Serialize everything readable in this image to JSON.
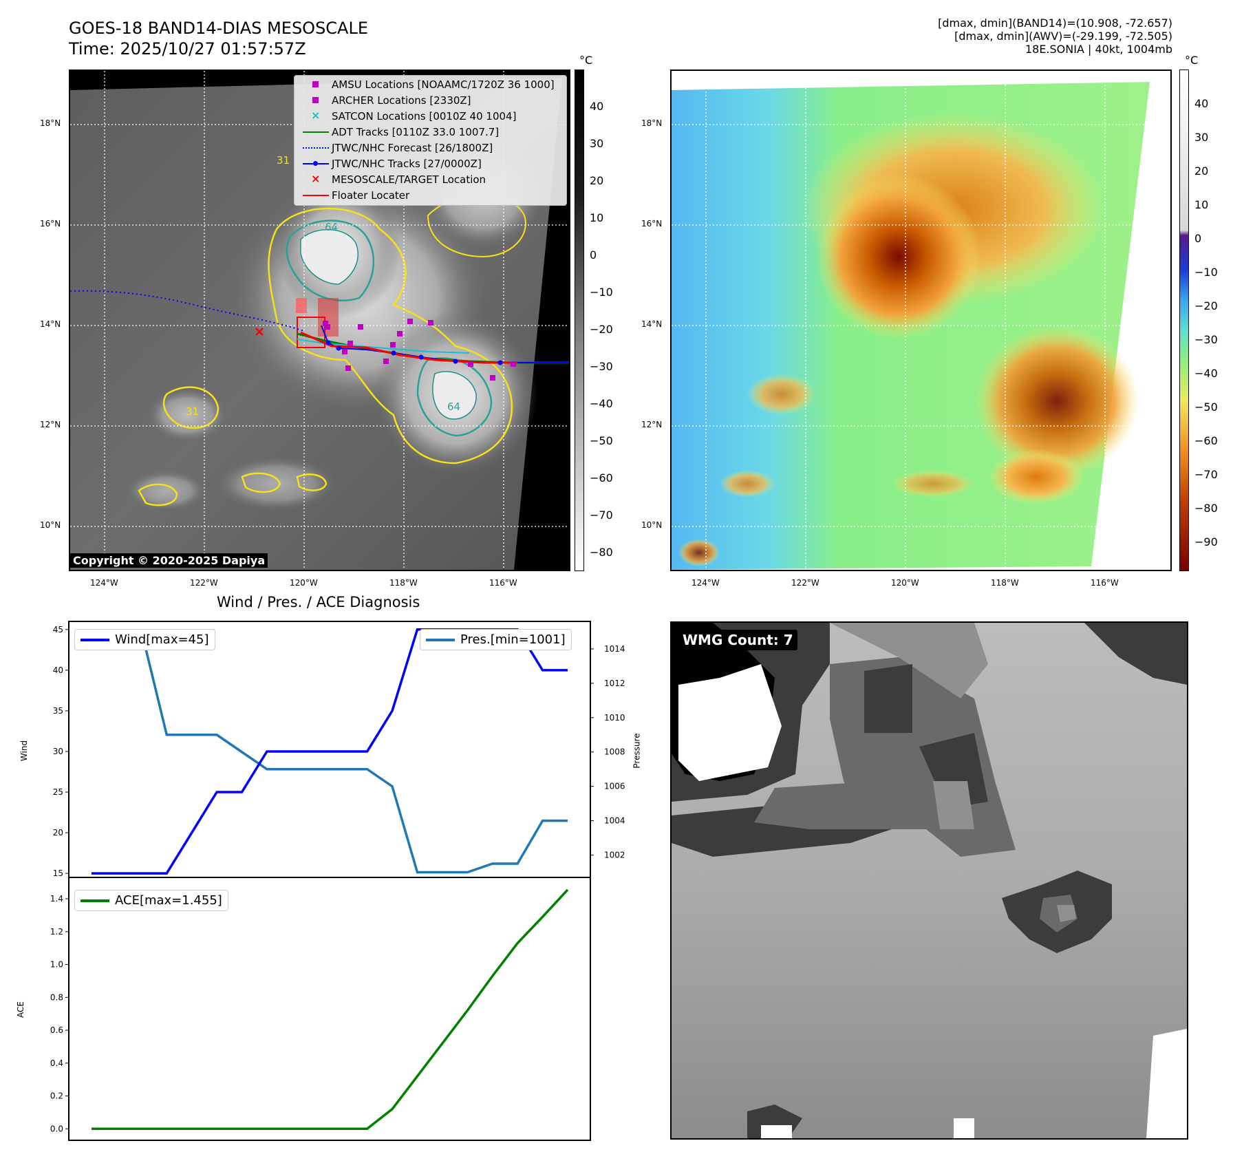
{
  "header": {
    "title_line1": "GOES-18 BAND14-DIAS MESOSCALE",
    "title_line2": "Time: 2025/10/27 01:57:57Z",
    "info_line1": "[dmax, dmin](BAND14)=(10.908, -72.657)",
    "info_line2": "[dmax, dmin](AWV)=(-29.199, -72.505)",
    "info_line3": "18E.SONIA | 40kt, 1004mb"
  },
  "map": {
    "lat_labels": [
      "18°N",
      "16°N",
      "14°N",
      "12°N",
      "10°N"
    ],
    "lon_labels": [
      "124°W",
      "122°W",
      "120°W",
      "118°W",
      "116°W"
    ],
    "copyright": "Copyright © 2020-2025 Dapiya",
    "contour_labels": [
      "31",
      "64",
      "31",
      "64"
    ]
  },
  "legend": {
    "items": [
      {
        "label": "AMSU Locations [NOAAMC/1720Z 36 1000]",
        "symbol": "square",
        "color": "#bf00bf"
      },
      {
        "label": "ARCHER Locations [2330Z]",
        "symbol": "square",
        "color": "#bf00bf"
      },
      {
        "label": "SATCON Locations [0010Z 40 1004]",
        "symbol": "x",
        "color": "#17becf"
      },
      {
        "label": "ADT Tracks [0110Z 33.0 1007.7]",
        "symbol": "line",
        "color": "#008000"
      },
      {
        "label": "JTWC/NHC Forecast [26/1800Z]",
        "symbol": "dotted",
        "color": "#0000ff"
      },
      {
        "label": "JTWC/NHC Tracks [27/0000Z]",
        "symbol": "line-dot",
        "color": "#0000ff"
      },
      {
        "label": "MESOSCALE/TARGET Location",
        "symbol": "x",
        "color": "#ff0000"
      },
      {
        "label": "Floater Locater",
        "symbol": "line",
        "color": "#ff0000"
      }
    ]
  },
  "cbar_gray": {
    "unit": "°C",
    "ticks": [
      "40",
      "30",
      "20",
      "10",
      "0",
      "−10",
      "−20",
      "−30",
      "−40",
      "−50",
      "−60",
      "−70",
      "−80"
    ]
  },
  "cbar_color": {
    "unit": "°C",
    "ticks": [
      "40",
      "30",
      "20",
      "10",
      "0",
      "−10",
      "−20",
      "−30",
      "−40",
      "−50",
      "−60",
      "−70",
      "−80",
      "−90"
    ]
  },
  "diag": {
    "title": "Wind / Pres. / ACE Diagnosis",
    "wind_label": "Wind",
    "pres_label": "Pressure",
    "ace_label": "ACE",
    "wind_legend": "Wind[max=45]",
    "pres_legend": "Pres.[min=1001]",
    "ace_legend": "ACE[max=1.455]"
  },
  "wmg": {
    "label": "WMG Count: 7"
  },
  "colors": {
    "wind": "#0000ff",
    "pressure": "#1f77b4",
    "ace": "#008000",
    "track_red": "#ff0000",
    "archer": "#bf00bf"
  },
  "chart_data": [
    {
      "type": "line",
      "title": "Wind / Pres. / ACE Diagnosis",
      "x": [
        0,
        1,
        2,
        3,
        4,
        5,
        6,
        7,
        8,
        9,
        10,
        11,
        12,
        13,
        14,
        15,
        16,
        17,
        18,
        19
      ],
      "series": [
        {
          "name": "Wind[max=45]",
          "axis": "left",
          "values": [
            15,
            15,
            15,
            15,
            20,
            25,
            25,
            30,
            30,
            30,
            30,
            30,
            35,
            45,
            45,
            45,
            45,
            45,
            40,
            40
          ]
        },
        {
          "name": "Pres.[min=1001]",
          "axis": "right",
          "values": [
            1015,
            1015,
            1015,
            1009,
            1009,
            1009,
            1008,
            1007,
            1007,
            1007,
            1007,
            1007,
            1006,
            1001,
            1001,
            1001,
            1001.5,
            1001.5,
            1004,
            1004
          ]
        }
      ],
      "ylabel": "Wind",
      "y2label": "Pressure",
      "ylim": [
        14.5,
        46
      ],
      "y2lim": [
        1000.7,
        1015.6
      ],
      "yticks": [
        15,
        20,
        25,
        30,
        35,
        40,
        45
      ],
      "y2ticks": [
        1002,
        1004,
        1006,
        1008,
        1010,
        1012,
        1014
      ]
    },
    {
      "type": "line",
      "x": [
        0,
        1,
        2,
        3,
        4,
        5,
        6,
        7,
        8,
        9,
        10,
        11,
        12,
        13,
        14,
        15,
        16,
        17,
        18,
        19
      ],
      "series": [
        {
          "name": "ACE[max=1.455]",
          "values": [
            0,
            0,
            0,
            0,
            0,
            0,
            0,
            0,
            0,
            0,
            0,
            0,
            0.12,
            0.32,
            0.52,
            0.72,
            0.93,
            1.13,
            1.29,
            1.455
          ]
        }
      ],
      "ylabel": "ACE",
      "ylim": [
        -0.07,
        1.53
      ],
      "yticks": [
        0.0,
        0.2,
        0.4,
        0.6,
        0.8,
        1.0,
        1.2,
        1.4
      ]
    }
  ]
}
